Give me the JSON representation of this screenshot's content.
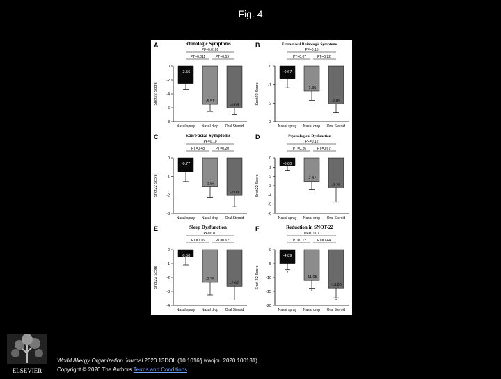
{
  "slide": {
    "title": "Fig. 4",
    "footer": {
      "journal": "World Allergy Organization Journal",
      "citation": " 2020 13DOI: (10.1016/j.waojou.2020.100131)",
      "copyright": "Copyright © 2020 The Authors ",
      "license_link": "Terms and Conditions"
    },
    "logo_text": "ELSEVIER"
  },
  "colors": {
    "black_bar": "#0a0a0a",
    "mid_bar": "#8c8c8c",
    "dark_bar": "#6a6a6a"
  },
  "chart_data": [
    {
      "panel": "A",
      "type": "bar",
      "title": "Rhinologic Symptoms",
      "categories": [
        "Nasal spray",
        "Nasal drop",
        "Oral Steroid"
      ],
      "values": [
        -2.56,
        -5.51,
        -6.05
      ],
      "errors": [
        0.8,
        1.0,
        0.9
      ],
      "ylabel": "Snot22 Score",
      "ylim": [
        -8,
        0
      ],
      "yticks": [
        0,
        -2,
        -4,
        -6,
        -8
      ],
      "p_values": {
        "top": "PF=0.0101",
        "left": "PT=0.011",
        "right": "PT=0.59"
      }
    },
    {
      "panel": "B",
      "type": "bar",
      "title": "Extra-nasal Rhinologic Symptoms",
      "categories": [
        "Nasal spray",
        "Nasal drop",
        "Oral Steroid"
      ],
      "values": [
        -0.67,
        -1.35,
        -2.05
      ],
      "errors": [
        0.5,
        0.5,
        0.45
      ],
      "ylabel": "Snot22 Score",
      "ylim": [
        -3,
        0
      ],
      "yticks": [
        0,
        -1,
        -2,
        -3
      ],
      "p_values": {
        "top": "PF=0.15",
        "left": "PT=0.07",
        "right": "PT=0.22"
      }
    },
    {
      "panel": "C",
      "type": "bar",
      "title": "Ear/Facial Symptoms",
      "categories": [
        "Nasal spray",
        "Nasal drop",
        "Oral Steroid"
      ],
      "values": [
        -0.77,
        -1.56,
        -2.03
      ],
      "errors": [
        0.5,
        0.6,
        0.6
      ],
      "ylabel": "Snot22 Score",
      "ylim": [
        -3,
        0
      ],
      "yticks": [
        0,
        -1,
        -2,
        -3
      ],
      "p_values": {
        "top": "PF=0.10",
        "left": "PT=0.48",
        "right": "PT=0.20"
      }
    },
    {
      "panel": "D",
      "type": "bar",
      "title": "Psychological Dysfunction",
      "categories": [
        "Nasal spray",
        "Nasal drop",
        "Oral Steroid"
      ],
      "values": [
        -0.8,
        -2.52,
        -3.28
      ],
      "errors": [
        0.6,
        0.9,
        1.5
      ],
      "ylabel": "Snot22 Score",
      "ylim": [
        -6,
        0
      ],
      "yticks": [
        0,
        -1,
        -2,
        -3,
        -4,
        -5,
        -6
      ],
      "p_values": {
        "top": "PF=0.12",
        "left": "PT=0.26",
        "right": "PT=0.67"
      }
    },
    {
      "panel": "E",
      "type": "bar",
      "title": "Sleep Dysfunction",
      "categories": [
        "Nasal spray",
        "Nasal drop",
        "Oral Steroid"
      ],
      "values": [
        -0.5,
        -2.35,
        -2.62
      ],
      "errors": [
        0.6,
        0.9,
        1.0
      ],
      "ylabel": "Snot22 Score",
      "ylim": [
        -4,
        0
      ],
      "yticks": [
        0,
        -1,
        -2,
        -3,
        -4
      ],
      "p_values": {
        "top": "PF=0.07",
        "left": "PT=0.16",
        "right": "PT=0.62"
      }
    },
    {
      "panel": "F",
      "type": "bar",
      "title": "Reduction in SNOT-22",
      "categories": [
        "Nasal spray",
        "Nasal drop",
        "Oral Steroid"
      ],
      "values": [
        -4.89,
        -11.05,
        -13.8
      ],
      "errors": [
        2.3,
        2.8,
        3.5
      ],
      "ylabel": "Snot-22 Score",
      "ylim": [
        -20,
        0
      ],
      "yticks": [
        0,
        -5,
        -10,
        -15,
        -20
      ],
      "p_values": {
        "top": "PF=0.007",
        "left": "PT=0.12",
        "right": "PT=0.44"
      },
      "markers": [
        "*",
        "*",
        "*"
      ]
    }
  ]
}
